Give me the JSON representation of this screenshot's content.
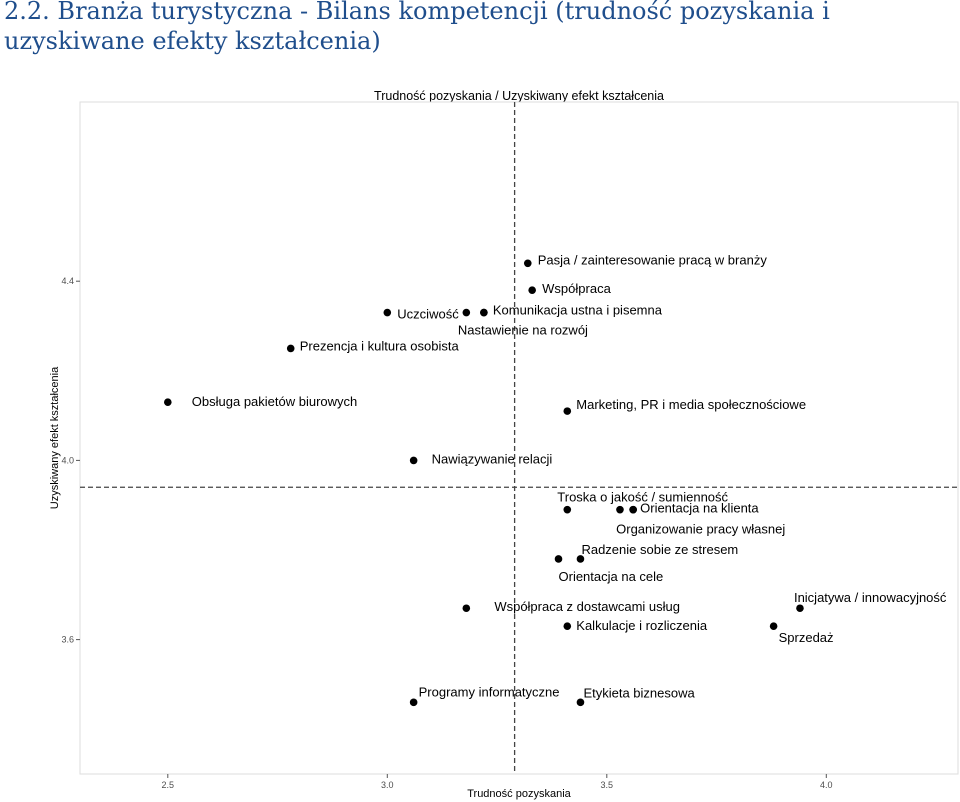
{
  "page_title": "2.2. Branża turystyczna - Bilans kompetencji  (trudność pozyskania i uzyskiwane efekty kształcenia)",
  "chart_data": {
    "type": "scatter",
    "title": "Trudność pozyskania / Uzyskiwany efekt kształcenia",
    "xlabel": "Trudność pozyskania",
    "ylabel": "Uzyskiwany efekt kształcenia",
    "xlim": [
      2.3,
      4.3
    ],
    "ylim": [
      3.3,
      4.8
    ],
    "xticks": [
      2.5,
      3.0,
      3.5,
      4.0
    ],
    "xtick_labels": [
      "2.5",
      "3.0",
      "3.5",
      "4.0"
    ],
    "yticks": [
      3.6,
      4.0,
      4.4
    ],
    "ytick_labels": [
      "3.6",
      "4.0",
      "4.4"
    ],
    "vline": 3.29,
    "hline": 3.94,
    "grid": false,
    "points": [
      {
        "x": 3.32,
        "y": 4.44,
        "label": "Pasja / zainteresowanie pracą w branży",
        "ldx": 10,
        "ldy": -3
      },
      {
        "x": 3.33,
        "y": 4.38,
        "label": "Współpraca",
        "ldx": 10,
        "ldy": -1
      },
      {
        "x": 3.0,
        "y": 4.33,
        "label": "Uczciwość",
        "ldx": 10,
        "ldy": 2
      },
      {
        "x": 3.18,
        "y": 4.33,
        "label": "",
        "ldx": 0,
        "ldy": 0
      },
      {
        "x": 3.22,
        "y": 4.33,
        "label": "Komunikacja ustna i pisemna",
        "ldx": 9,
        "ldy": -2
      },
      {
        "x": 3.22,
        "y": 4.33,
        "label": "Nastawienie na rozwój",
        "ldx": -26,
        "ldy": 18
      },
      {
        "x": 2.78,
        "y": 4.25,
        "label": "Prezencja i kultura osobista",
        "ldx": 9,
        "ldy": -2
      },
      {
        "x": 2.5,
        "y": 4.13,
        "label": "Obsługa pakietów biurowych",
        "ldx": 24,
        "ldy": 0
      },
      {
        "x": 3.41,
        "y": 4.11,
        "label": "Marketing, PR i media społecznościowe",
        "ldx": 9,
        "ldy": -6
      },
      {
        "x": 3.06,
        "y": 4.0,
        "label": "Nawiązywanie relacji",
        "ldx": 18,
        "ldy": -1
      },
      {
        "x": 3.41,
        "y": 3.89,
        "label": "Troska o jakość / sumienność",
        "ldx": -10,
        "ldy": -12
      },
      {
        "x": 3.53,
        "y": 3.89,
        "label": "",
        "ldx": 0,
        "ldy": 0
      },
      {
        "x": 3.56,
        "y": 3.89,
        "label": "Orientacja na klienta",
        "ldx": 7,
        "ldy": -1
      },
      {
        "x": 3.56,
        "y": 3.89,
        "label": "Organizowanie pracy własnej",
        "ldx": -17,
        "ldy": 20
      },
      {
        "x": 3.39,
        "y": 3.78,
        "label": "Orientacja na cele",
        "ldx": 0,
        "ldy": 18
      },
      {
        "x": 3.44,
        "y": 3.78,
        "label": "Radzenie sobie ze stresem",
        "ldx": 1,
        "ldy": -9
      },
      {
        "x": 3.18,
        "y": 3.67,
        "label": "Współpraca z dostawcami usług",
        "ldx": 28,
        "ldy": -1
      },
      {
        "x": 3.41,
        "y": 3.63,
        "label": "Kalkulacje i rozliczenia",
        "ldx": 9,
        "ldy": 0
      },
      {
        "x": 3.94,
        "y": 3.67,
        "label": "Inicjatywa / innowacyjność",
        "ldx": -6,
        "ldy": -10
      },
      {
        "x": 3.88,
        "y": 3.63,
        "label": "Sprzedaż",
        "ldx": 5,
        "ldy": 12
      },
      {
        "x": 3.06,
        "y": 3.46,
        "label": "Programy informatyczne",
        "ldx": 5,
        "ldy": -10
      },
      {
        "x": 3.44,
        "y": 3.46,
        "label": "Etykieta biznesowa",
        "ldx": 3,
        "ldy": -9
      }
    ]
  }
}
